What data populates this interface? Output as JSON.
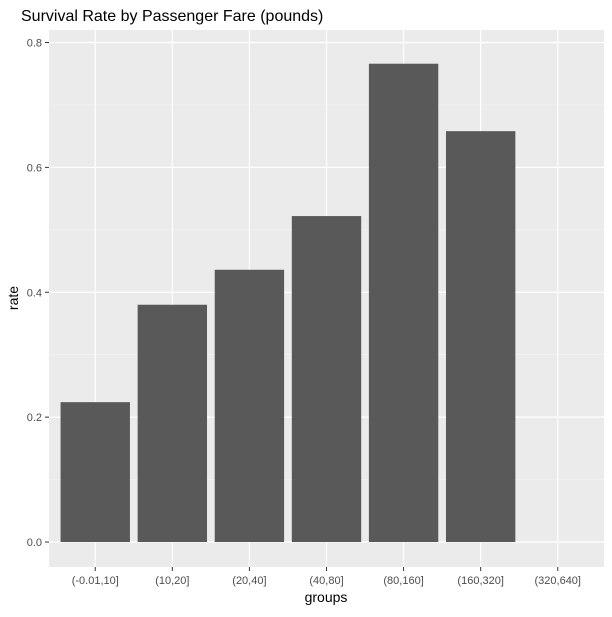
{
  "chart_data": {
    "type": "bar",
    "title": "Survival Rate by Passenger Fare (pounds)",
    "xlabel": "groups",
    "ylabel": "rate",
    "categories": [
      "(-0.01,10]",
      "(10,20]",
      "(20,40]",
      "(40,80]",
      "(80,160]",
      "(160,320]",
      "(320,640]"
    ],
    "values": [
      0.224,
      0.38,
      0.436,
      0.522,
      0.766,
      0.658,
      0
    ],
    "ylim": [
      -0.04,
      0.82
    ],
    "yticks": [
      0.0,
      0.2,
      0.4,
      0.6,
      0.8
    ],
    "ytick_labels": [
      "0.0",
      "0.2",
      "0.4",
      "0.6",
      "0.8"
    ],
    "grid": true,
    "colors": {
      "panel": "#ebebeb",
      "grid_major": "#ffffff",
      "bar": "#595959",
      "text": "#4d4d4d",
      "title": "#000000"
    }
  }
}
